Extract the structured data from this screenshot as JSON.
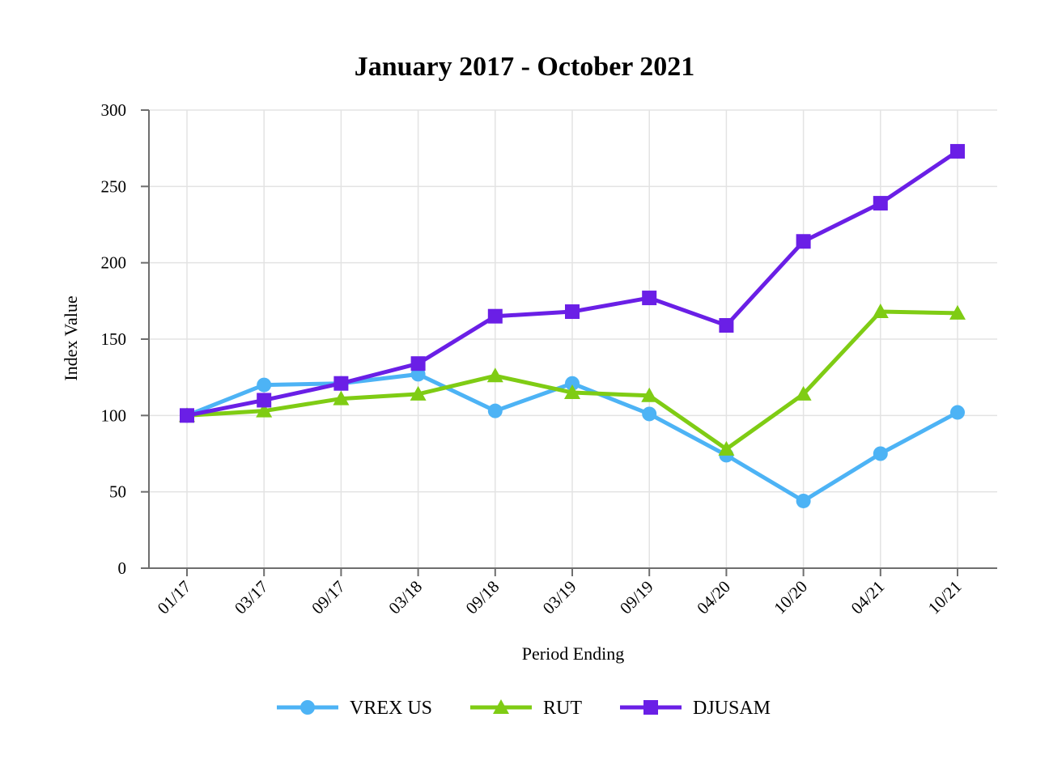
{
  "chart_data": {
    "type": "line",
    "title": "January 2017 - October 2021",
    "xlabel": "Period Ending",
    "ylabel": "Index Value",
    "ylim": [
      0,
      300
    ],
    "yticks": [
      0,
      50,
      100,
      150,
      200,
      250,
      300
    ],
    "categories": [
      "01/17",
      "03/17",
      "09/17",
      "03/18",
      "09/18",
      "03/19",
      "09/19",
      "04/20",
      "10/20",
      "04/21",
      "10/21"
    ],
    "grid": true,
    "legend_position": "bottom",
    "series": [
      {
        "name": "VREX US",
        "color": "#4db3f5",
        "marker": "circle",
        "values": [
          100,
          120,
          121,
          127,
          103,
          121,
          101,
          74,
          44,
          75,
          102
        ]
      },
      {
        "name": "RUT",
        "color": "#7fcc14",
        "marker": "triangle",
        "values": [
          100,
          103,
          111,
          114,
          126,
          115,
          113,
          78,
          114,
          168,
          167
        ]
      },
      {
        "name": "DJUSAM",
        "color": "#6a1fe6",
        "marker": "square",
        "values": [
          100,
          110,
          121,
          134,
          165,
          168,
          177,
          159,
          214,
          239,
          273
        ]
      }
    ]
  }
}
